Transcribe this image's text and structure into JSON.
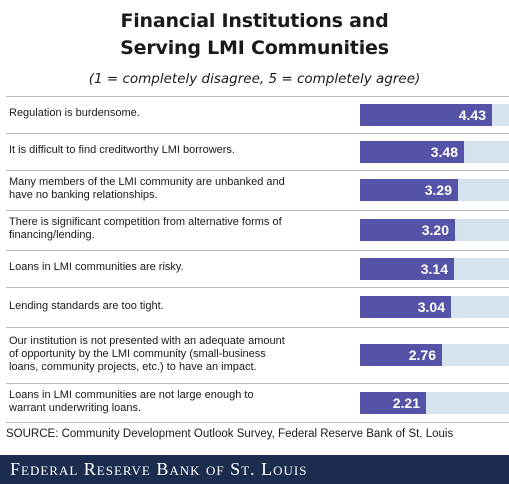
{
  "title_line1": "Financial Institutions and",
  "title_line2": "Serving LMI Communities",
  "subtitle": "(1 = completely disagree, 5 = completely agree)",
  "source": "SOURCE: Community Development Outlook Survey, Federal Reserve Bank of St. Louis",
  "footer": "Federal Reserve Bank of St. Louis",
  "colors": {
    "bar": "#5553a8",
    "track": "#d6e3ee",
    "footer": "#1b2c4f"
  },
  "chart_data": {
    "type": "bar",
    "orientation": "horizontal",
    "title": "Financial Institutions and Serving LMI Communities",
    "subtitle": "(1 = completely disagree, 5 = completely agree)",
    "xlim": [
      0,
      5
    ],
    "categories": [
      [
        "Regulation is burdensome."
      ],
      [
        "It is difficult to find creditworthy LMI borrowers."
      ],
      [
        "Many members of the LMI community are unbanked and",
        "have no banking relationships."
      ],
      [
        "There is significant competition from alternative forms of",
        "financing/lending."
      ],
      [
        "Loans in LMI communities are risky."
      ],
      [
        "Lending standards are too tight."
      ],
      [
        "Our institution is not presented with an adequate amount",
        "of opportunity by the LMI community (small-business",
        "loans, community projects, etc.) to have an impact."
      ],
      [
        "Loans in LMI communities are not large enough to",
        "warrant underwriting loans."
      ]
    ],
    "values": [
      4.43,
      3.48,
      3.29,
      3.2,
      3.14,
      3.04,
      2.76,
      2.21
    ],
    "value_labels": [
      "4.43",
      "3.48",
      "3.29",
      "3.20",
      "3.14",
      "3.04",
      "2.76",
      "2.21"
    ]
  }
}
